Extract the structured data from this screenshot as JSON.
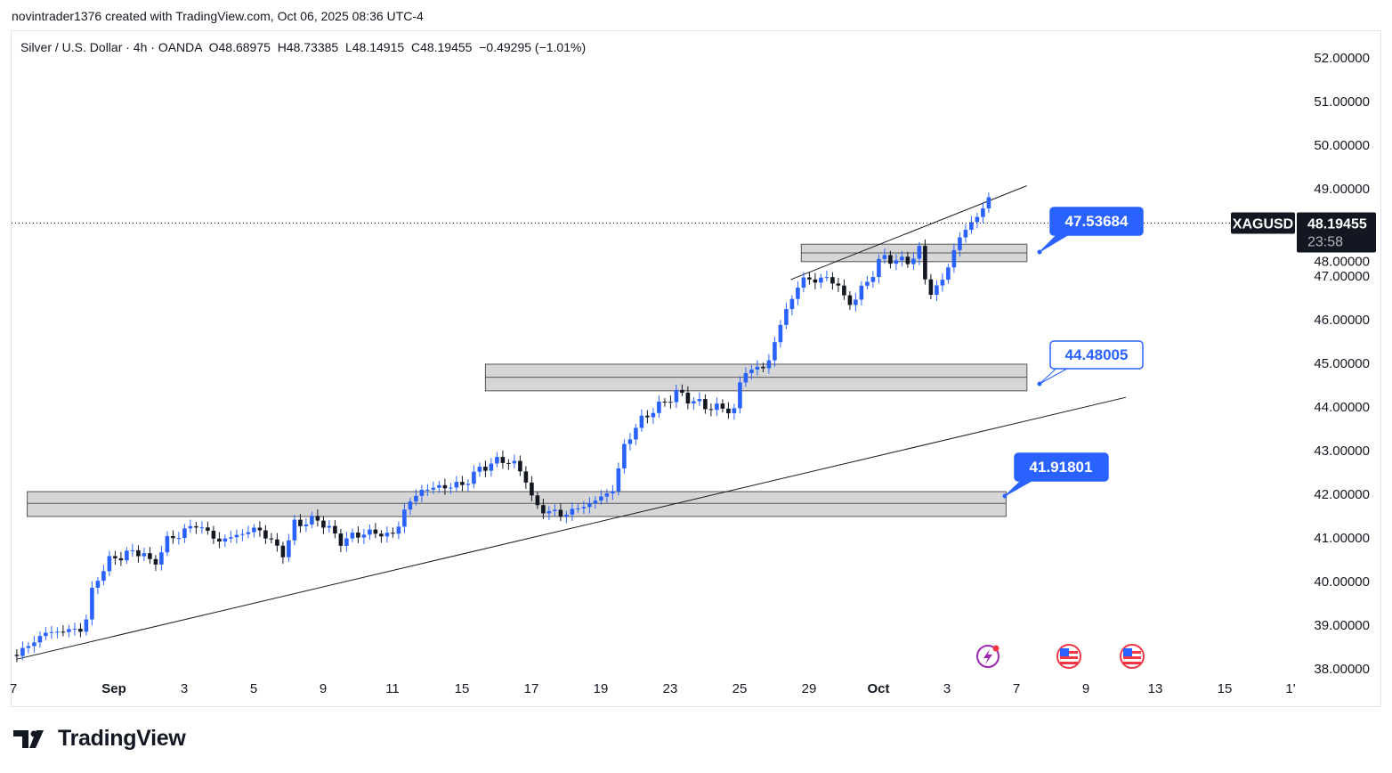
{
  "header": {
    "credit": "novintrader1376 created with TradingView.com, Oct 06, 2025 08:36 UTC-4"
  },
  "legend": {
    "symbol": "Silver / U.S. Dollar · 4h · OANDA",
    "open": "O48.68975",
    "high": "H48.73385",
    "low": "L48.14915",
    "close": "C48.19455",
    "change": "−0.49295 (−1.01%)"
  },
  "ticker": {
    "symbol": "XAGUSD",
    "price": "48.19455",
    "countdown": "23:58"
  },
  "brand": {
    "name": "TradingView"
  },
  "colors": {
    "up": "#2962ff",
    "down": "#131722",
    "callout": "#2962ff",
    "zone": "#d1d1d1"
  },
  "chart_data": {
    "type": "candlestick",
    "price_axis": {
      "min": 38,
      "max": 52,
      "ticks": [
        "52.00000",
        "51.00000",
        "50.00000",
        "49.00000",
        "48.00000",
        "47.00000",
        "46.00000",
        "45.00000",
        "44.00000",
        "43.00000",
        "42.00000",
        "41.00000",
        "40.00000",
        "39.00000",
        "38.00000"
      ]
    },
    "time_axis": {
      "unit": "trading days since Aug 27",
      "labels": [
        "7",
        "Sep",
        "3",
        "5",
        "9",
        "11",
        "15",
        "17",
        "19",
        "23",
        "25",
        "29",
        "Oct",
        "3",
        "7",
        "9",
        "13",
        "15",
        "1'"
      ]
    },
    "price_path": [
      [
        0.1,
        38.3
      ],
      [
        0.9,
        38.8
      ],
      [
        2.05,
        38.9
      ],
      [
        2.3,
        39.9
      ],
      [
        2.8,
        40.5
      ],
      [
        3.7,
        40.7
      ],
      [
        4.0,
        40.3
      ],
      [
        4.4,
        40.9
      ],
      [
        5.3,
        41.3
      ],
      [
        5.9,
        40.9
      ],
      [
        7.05,
        41.2
      ],
      [
        7.8,
        40.6
      ],
      [
        8.1,
        41.3
      ],
      [
        8.85,
        41.4
      ],
      [
        9.4,
        40.9
      ],
      [
        10.1,
        41.1
      ],
      [
        11.0,
        41.05
      ],
      [
        11.3,
        41.7
      ],
      [
        11.8,
        42.1
      ],
      [
        12.95,
        42.2
      ],
      [
        13.5,
        42.6
      ],
      [
        14.2,
        42.8
      ],
      [
        14.75,
        42.4
      ],
      [
        15.0,
        41.7
      ],
      [
        15.8,
        41.5
      ],
      [
        16.7,
        41.8
      ],
      [
        17.3,
        42.1
      ],
      [
        17.6,
        43.1
      ],
      [
        18.1,
        43.7
      ],
      [
        19.1,
        44.3
      ],
      [
        19.9,
        44.0
      ],
      [
        20.8,
        43.9
      ],
      [
        21.0,
        44.8
      ],
      [
        21.7,
        44.9
      ],
      [
        22.2,
        46.1
      ],
      [
        22.7,
        46.9
      ],
      [
        23.7,
        46.9
      ],
      [
        24.0,
        46.3
      ],
      [
        24.5,
        46.7
      ],
      [
        25.0,
        47.4
      ],
      [
        25.8,
        47.3
      ],
      [
        26.2,
        47.7
      ],
      [
        26.3,
        46.5
      ],
      [
        26.8,
        46.9
      ],
      [
        27.2,
        47.8
      ],
      [
        27.6,
        48.2
      ],
      [
        28.0,
        48.6
      ],
      [
        28.1,
        48.73
      ],
      [
        28.15,
        48.19
      ]
    ],
    "zones": [
      {
        "from": 0.4,
        "to": 28.6,
        "low": 41.47,
        "high": 42.04,
        "mid": 41.77
      },
      {
        "from": 13.6,
        "to": 29.2,
        "low": 44.35,
        "high": 44.96,
        "mid": 44.66
      },
      {
        "from": 22.7,
        "to": 29.2,
        "low": 47.31,
        "high": 47.71,
        "mid": 47.51
      }
    ],
    "trendlines": [
      {
        "t1": 0.1,
        "p1": 38.2,
        "t2": 32.05,
        "p2": 44.2
      },
      {
        "t1": 22.4,
        "p1": 46.9,
        "t2": 29.2,
        "p2": 49.05
      }
    ],
    "callouts": [
      {
        "label": "47.53684",
        "t": 29.5,
        "p": 47.55
      },
      {
        "label": "44.48005",
        "t": 29.5,
        "p": 44.5
      },
      {
        "label": "41.91801",
        "t": 28.5,
        "p": 41.95
      }
    ],
    "last_price": 48.19455
  }
}
